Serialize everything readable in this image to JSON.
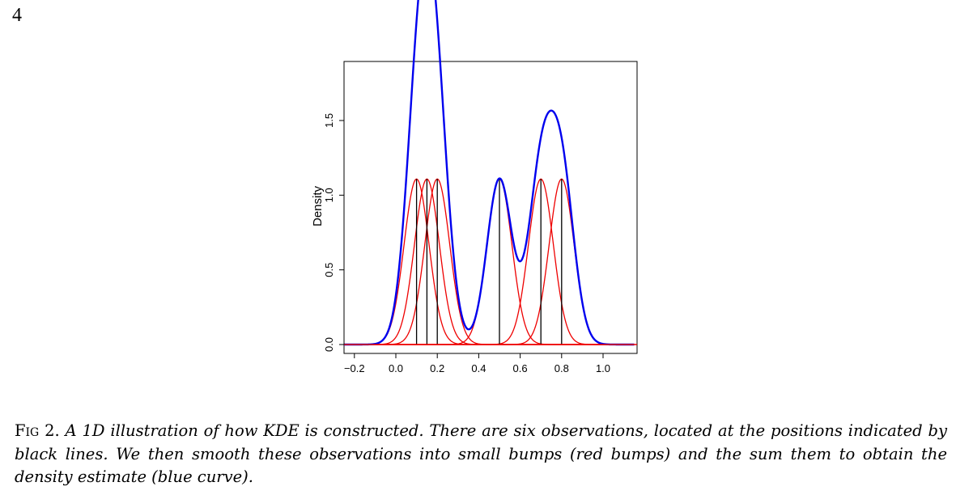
{
  "page_number": "4",
  "caption": {
    "label": "Fig 2.",
    "text": "A 1D illustration of how KDE is constructed. There are six observations, located at the positions indicated by black lines. We then smooth these observations into small bumps (red bumps) and the sum them to obtain the density estimate (blue curve)."
  },
  "colors": {
    "kde_curve": "#0000ee",
    "bumps": "#ee0000",
    "observations": "#000000",
    "frame": "#000000"
  },
  "chart_data": {
    "type": "line",
    "title": "",
    "xlabel": "",
    "ylabel": "Density",
    "xlim": [
      -0.25,
      1.15
    ],
    "ylim": [
      0.0,
      1.9
    ],
    "x_ticks": [
      -0.2,
      0.0,
      0.2,
      0.4,
      0.6,
      0.8,
      1.0
    ],
    "x_tick_labels": [
      "−0.2",
      "0.0",
      "0.2",
      "0.4",
      "0.6",
      "0.8",
      "1.0"
    ],
    "y_ticks": [
      0.0,
      0.5,
      1.0,
      1.5
    ],
    "y_tick_labels": [
      "0.0",
      "0.5",
      "1.0",
      "1.5"
    ],
    "observations": [
      0.1,
      0.15,
      0.2,
      0.5,
      0.7,
      0.8
    ],
    "bandwidth": 0.06,
    "bump_scale": 1.0,
    "series": [
      {
        "name": "density estimate (blue curve)",
        "kind": "sum of bumps"
      },
      {
        "name": "small bumps (red bumps)",
        "kind": "gaussian per observation"
      },
      {
        "name": "observations (black lines)",
        "kind": "vertical segments"
      }
    ]
  }
}
